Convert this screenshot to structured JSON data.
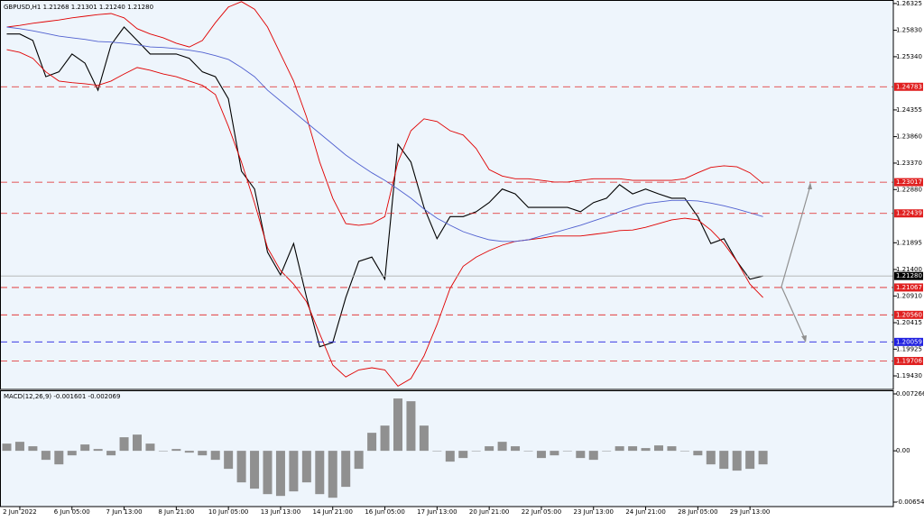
{
  "chart_data": [
    {
      "type": "line",
      "title": "GBPUSD,H1  1.21268 1.21301 1.21240 1.21280",
      "ylim": [
        1.1918,
        1.2639
      ],
      "yticks": [
        {
          "value": 1.26325,
          "label": "1.26325"
        },
        {
          "value": 1.2583,
          "label": "1.25830"
        },
        {
          "value": 1.2534,
          "label": "1.25340"
        },
        {
          "value": 1.24355,
          "label": "1.24355"
        },
        {
          "value": 1.2386,
          "label": "1.23860"
        },
        {
          "value": 1.2337,
          "label": "1.23370"
        },
        {
          "value": 1.2288,
          "label": "1.22880"
        },
        {
          "value": 1.21895,
          "label": "1.21895"
        },
        {
          "value": 1.214,
          "label": "1.21400"
        },
        {
          "value": 1.2091,
          "label": "1.20910"
        },
        {
          "value": 1.20415,
          "label": "1.20415"
        },
        {
          "value": 1.19925,
          "label": "1.19925"
        },
        {
          "value": 1.1943,
          "label": "1.19430"
        }
      ],
      "levels": [
        {
          "value": 1.24783,
          "label": "1.24783",
          "color": "#e02020"
        },
        {
          "value": 1.23017,
          "label": "1.23017",
          "color": "#e02020"
        },
        {
          "value": 1.22439,
          "label": "1.22439",
          "color": "#e02020"
        },
        {
          "value": 1.2128,
          "label": "1.21280",
          "color": "#000000"
        },
        {
          "value": 1.21067,
          "label": "1.21067",
          "color": "#e02020"
        },
        {
          "value": 1.2056,
          "label": "1.20560",
          "color": "#e02020"
        },
        {
          "value": 1.20059,
          "label": "1.20059",
          "color": "#2020e0"
        },
        {
          "value": 1.19706,
          "label": "1.19706",
          "color": "#e02020"
        }
      ],
      "series": [
        {
          "name": "GBPUSD",
          "color": "#000000",
          "values": [
            1.2576,
            1.2576,
            1.2564,
            1.2497,
            1.2506,
            1.2539,
            1.2522,
            1.2472,
            1.2556,
            1.2589,
            1.2564,
            1.2539,
            1.2539,
            1.2539,
            1.2531,
            1.2506,
            1.2497,
            1.2456,
            1.2322,
            1.2289,
            1.2172,
            1.213,
            1.2188,
            1.2088,
            1.1997,
            1.2005,
            1.2088,
            1.2155,
            1.2163,
            1.2122,
            1.2372,
            1.2339,
            1.2255,
            1.2197,
            1.2238,
            1.2238,
            1.2247,
            1.2264,
            1.2289,
            1.228,
            1.2255,
            1.2255,
            1.2255,
            1.2255,
            1.2247,
            1.2264,
            1.2272,
            1.2297,
            1.228,
            1.2289,
            1.228,
            1.2272,
            1.2272,
            1.2238,
            1.2188,
            1.2197,
            1.2155,
            1.2122,
            1.2128
          ]
        },
        {
          "color": "#e00000",
          "values": [
            1.2589,
            1.2592,
            1.2596,
            1.2599,
            1.2602,
            1.2606,
            1.2609,
            1.2612,
            1.2614,
            1.2606,
            1.2586,
            1.2576,
            1.2569,
            1.2559,
            1.2552,
            1.2564,
            1.2597,
            1.2626,
            1.2636,
            1.2622,
            1.2589,
            1.2539,
            1.2489,
            1.2422,
            1.2339,
            1.2272,
            1.2225,
            1.2222,
            1.2225,
            1.2238,
            1.2339,
            1.2397,
            1.2419,
            1.2414,
            1.2397,
            1.2389,
            1.2364,
            1.2325,
            1.2313,
            1.2308,
            1.2308,
            1.2305,
            1.2302,
            1.2302,
            1.2305,
            1.2308,
            1.2308,
            1.2308,
            1.2305,
            1.2305,
            1.2305,
            1.2305,
            1.2308,
            1.2319,
            1.2329,
            1.2332,
            1.233,
            1.2319,
            1.2299
          ]
        },
        {
          "color": "#e00000",
          "values": [
            1.2547,
            1.2542,
            1.2531,
            1.2506,
            1.2489,
            1.2486,
            1.2484,
            1.2481,
            1.2489,
            1.2502,
            1.2514,
            1.2509,
            1.2502,
            1.2497,
            1.2489,
            1.2481,
            1.2464,
            1.2405,
            1.2339,
            1.2263,
            1.218,
            1.2138,
            1.2113,
            1.208,
            1.2021,
            1.1963,
            1.1941,
            1.1954,
            1.1958,
            1.1954,
            1.1924,
            1.1938,
            1.198,
            1.2038,
            1.2105,
            1.2146,
            1.2163,
            1.2175,
            1.2185,
            1.2192,
            1.2195,
            1.2198,
            1.2202,
            1.2202,
            1.2202,
            1.2205,
            1.2208,
            1.2212,
            1.2213,
            1.2218,
            1.2225,
            1.2232,
            1.2235,
            1.2232,
            1.2213,
            1.2188,
            1.2155,
            1.2113,
            1.2088
          ]
        },
        {
          "color": "#5060d0",
          "values": [
            1.2589,
            1.2586,
            1.2582,
            1.2577,
            1.2572,
            1.2569,
            1.2566,
            1.2562,
            1.2561,
            1.2559,
            1.2556,
            1.2552,
            1.2551,
            1.2549,
            1.2546,
            1.2542,
            1.2536,
            1.2529,
            1.2514,
            1.2497,
            1.2472,
            1.2452,
            1.2432,
            1.2412,
            1.2392,
            1.2372,
            1.2352,
            1.2335,
            1.2319,
            1.2305,
            1.2289,
            1.2272,
            1.2252,
            1.2235,
            1.2222,
            1.221,
            1.2202,
            1.2195,
            1.2192,
            1.2192,
            1.2195,
            1.2202,
            1.2208,
            1.2215,
            1.2222,
            1.223,
            1.2238,
            1.2247,
            1.2255,
            1.2262,
            1.2265,
            1.2268,
            1.2268,
            1.2267,
            1.2263,
            1.2258,
            1.2252,
            1.2245,
            1.2238
          ]
        }
      ]
    },
    {
      "type": "bar",
      "title": "MACD(12,26,9) -0.001601 -0.002069",
      "color": "#909090",
      "ylim": [
        -0.00712,
        0.00761
      ],
      "yticks": [
        0.007266,
        {
          "value": 0,
          "label": "0.00"
        },
        -0.006547
      ],
      "categories": [
        null,
        "2 Jun 2022",
        null,
        null,
        null,
        "6 Jun 05:00",
        null,
        null,
        null,
        "7 Jun 13:00",
        null,
        null,
        null,
        "8 Jun 21:00",
        null,
        null,
        null,
        "10 Jun 05:00",
        null,
        null,
        null,
        "13 Jun 13:00",
        null,
        null,
        null,
        "14 Jun 21:00",
        null,
        null,
        null,
        "16 Jun 05:00",
        null,
        null,
        null,
        "17 Jun 13:00",
        null,
        null,
        null,
        "20 Jun 21:00",
        null,
        null,
        null,
        "22 Jun 05:00",
        null,
        null,
        null,
        "23 Jun 13:00",
        null,
        null,
        null,
        "24 Jun 21:00",
        null,
        null,
        null,
        "28 Jun 05:00",
        null,
        null,
        null,
        "29 Jun 13:00",
        null
      ],
      "values": [
        0.00092,
        0.00115,
        0.00058,
        -0.00115,
        -0.00173,
        -0.00058,
        0.00081,
        0.00023,
        -0.00058,
        0.00173,
        0.00207,
        0.00092,
        0,
        0.00023,
        -0.00023,
        -0.00058,
        -0.00115,
        -0.0023,
        -0.00403,
        -0.00483,
        -0.00553,
        -0.00576,
        -0.00518,
        -0.00403,
        -0.00553,
        -0.00599,
        -0.0046,
        -0.0023,
        0.0023,
        0.00322,
        0.00668,
        0.00633,
        0.00322,
        0,
        -0.00138,
        -0.00092,
        0,
        0.00058,
        0.00115,
        0.00058,
        0,
        -0.00092,
        -0.00058,
        0,
        -0.00092,
        -0.00115,
        0,
        0.00058,
        0.00058,
        0.00035,
        0.00069,
        0.00058,
        0,
        -0.00058,
        -0.00173,
        -0.0023,
        -0.00253,
        -0.0023,
        -0.00173
      ]
    }
  ]
}
